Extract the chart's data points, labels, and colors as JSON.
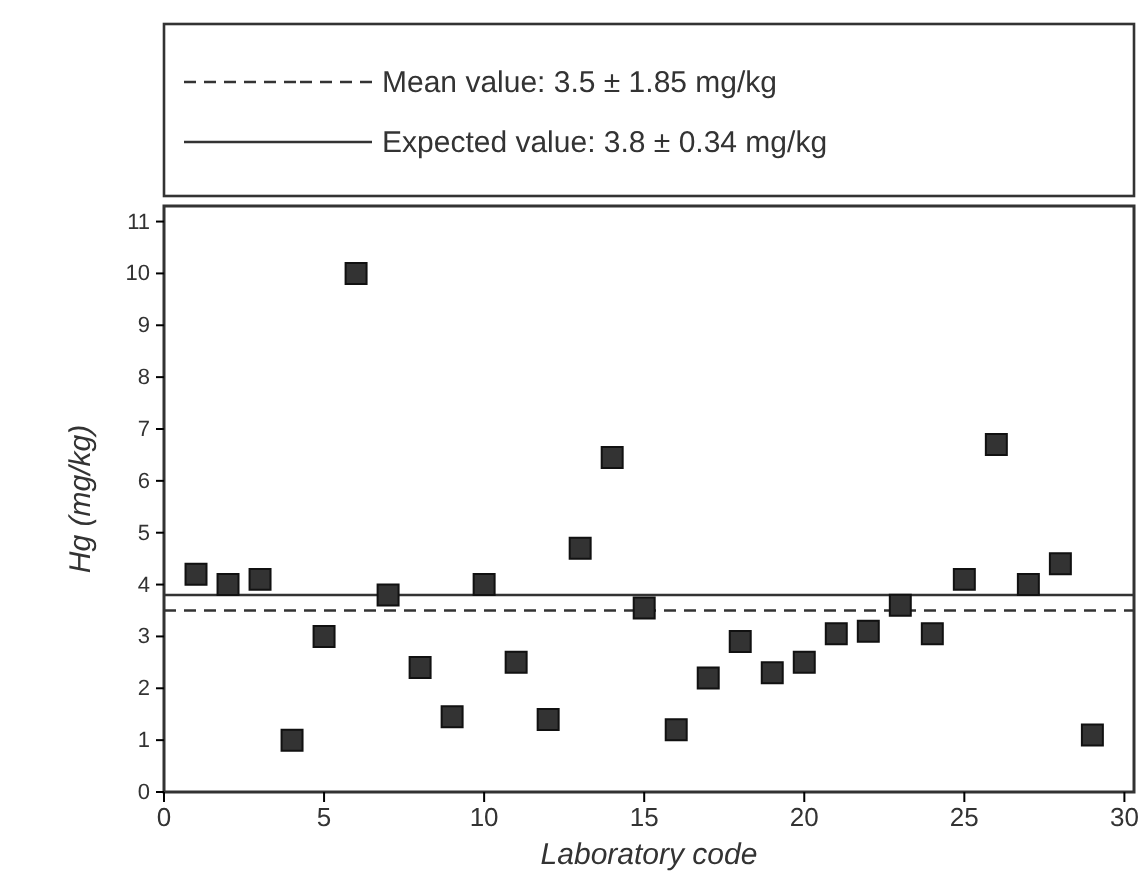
{
  "chart_data": {
    "type": "scatter",
    "xlabel": "Laboratory code",
    "ylabel": "Hg (mg/kg)",
    "x": [
      1,
      2,
      3,
      4,
      5,
      6,
      7,
      8,
      9,
      10,
      11,
      12,
      13,
      14,
      15,
      16,
      17,
      18,
      19,
      20,
      21,
      22,
      23,
      24,
      25,
      26,
      27,
      28,
      29
    ],
    "series": [
      {
        "color": "#333333",
        "values": [
          4.2,
          4.0,
          4.1,
          1.0,
          3.0,
          10.0,
          3.8,
          2.4,
          1.45,
          4.0,
          2.5,
          1.4,
          4.7,
          6.45,
          3.55,
          1.2,
          2.2,
          2.9,
          2.3,
          2.5,
          3.05,
          3.1,
          3.6,
          3.05,
          4.1,
          6.7,
          4.0,
          4.4,
          1.1
        ]
      }
    ],
    "marker": "square",
    "xlim": [
      0,
      30.3
    ],
    "xticks": [
      0,
      5,
      10,
      15,
      20,
      25,
      30
    ],
    "ylim": [
      0,
      11.3
    ],
    "yticks": [
      0,
      1,
      2,
      3,
      4,
      5,
      6,
      7,
      8,
      9,
      10,
      11
    ],
    "grid": false,
    "legend": "top",
    "ref_lines": [
      {
        "axis": "y",
        "value": 3.5,
        "label": "Mean value: 3.5 ± 1.85 mg/kg",
        "line_style": "dashed",
        "color": "#333333"
      },
      {
        "axis": "y",
        "value": 3.8,
        "label": "Expected value: 3.8 ± 0.34 mg/kg",
        "line_style": "solid",
        "color": "#333333"
      }
    ]
  }
}
